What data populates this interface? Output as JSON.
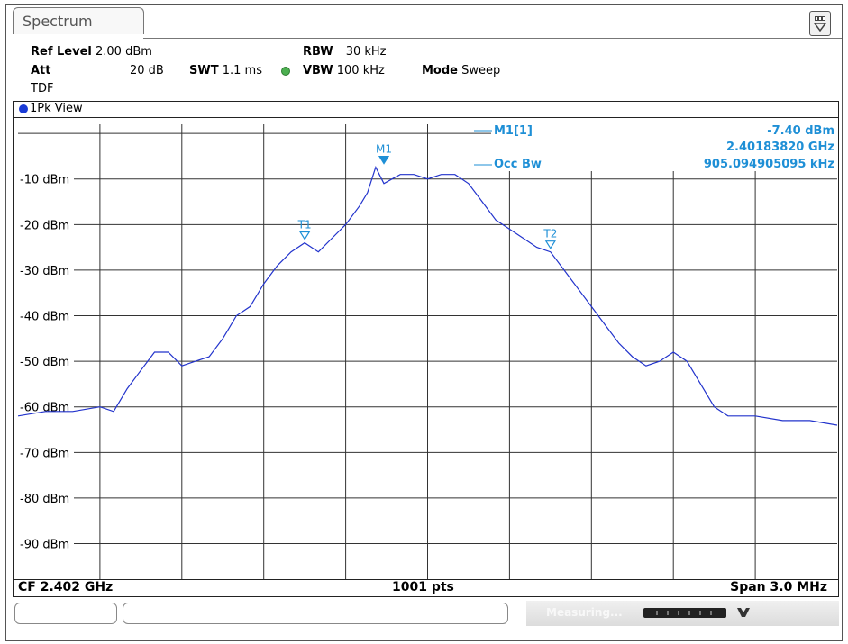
{
  "window": {
    "tab_label": "Spectrum",
    "menu_icon": "display-menu-icon"
  },
  "settings": {
    "ref_level_label": "Ref Level",
    "ref_level_value": "2.00 dBm",
    "att_label": "Att",
    "att_value": "20 dB",
    "swt_label": "SWT",
    "swt_value": "1.1 ms",
    "rbw_label": "RBW",
    "rbw_value": "30 kHz",
    "vbw_label": "VBW",
    "vbw_value": "100 kHz",
    "mode_label": "Mode",
    "mode_value": "Sweep",
    "tdf": "TDF"
  },
  "view": {
    "label": "1Pk View"
  },
  "marker_info": {
    "m1_label": "M1[1]",
    "m1_level": "-7.40 dBm",
    "m1_freq": "2.40183820 GHz",
    "occ_bw_label": "Occ Bw",
    "occ_bw_value": "905.094905095 kHz"
  },
  "footer": {
    "cf": "CF 2.402 GHz",
    "pts": "1001 pts",
    "span": "Span 3.0 MHz"
  },
  "status": {
    "measuring": "Measuring..."
  },
  "colors": {
    "trace": "#2233cc",
    "marker": "#1e8fd6",
    "grid": "#333333"
  },
  "chart_data": {
    "type": "line",
    "y_tick_labels": [
      "-10 dBm",
      "-20 dBm",
      "-30 dBm",
      "-40 dBm",
      "-50 dBm",
      "-60 dBm",
      "-70 dBm",
      "-80 dBm",
      "-90 dBm"
    ],
    "ylim": [
      -98,
      2
    ],
    "xlim": [
      2.4005,
      2.4035
    ],
    "grid": true,
    "x": [
      2.4005,
      2.4006,
      2.4007,
      2.4008,
      2.40085,
      2.4009,
      2.40095,
      2.401,
      2.40105,
      2.4011,
      2.40115,
      2.4012,
      2.40125,
      2.4013,
      2.40135,
      2.4014,
      2.40145,
      2.4015,
      2.40155,
      2.4016,
      2.40165,
      2.4017,
      2.40175,
      2.40178,
      2.40181,
      2.40184,
      2.40187,
      2.4019,
      2.40195,
      2.402,
      2.40205,
      2.4021,
      2.40215,
      2.4022,
      2.40225,
      2.4023,
      2.40235,
      2.4024,
      2.40245,
      2.4025,
      2.40255,
      2.4026,
      2.40265,
      2.4027,
      2.40275,
      2.4028,
      2.40285,
      2.4029,
      2.40295,
      2.403,
      2.40305,
      2.4031,
      2.40315,
      2.4032,
      2.4033,
      2.4034,
      2.4035
    ],
    "y": [
      -62,
      -61,
      -61,
      -60,
      -61,
      -56,
      -52,
      -48,
      -48,
      -51,
      -50,
      -49,
      -45,
      -40,
      -38,
      -33,
      -29,
      -26,
      -24,
      -26,
      -23,
      -20,
      -16,
      -13,
      -7.4,
      -11,
      -10,
      -9,
      -9,
      -10,
      -9,
      -9,
      -11,
      -15,
      -19,
      -21,
      -23,
      -25,
      -26,
      -30,
      -34,
      -38,
      -42,
      -46,
      -49,
      -51,
      -50,
      -48,
      -50,
      -55,
      -60,
      -62,
      -62,
      -62,
      -63,
      -63,
      -64
    ],
    "markers": [
      {
        "name": "M1",
        "x": 2.40184,
        "y": -7.4,
        "filled": true
      },
      {
        "name": "T1",
        "x": 2.40155,
        "y": -24,
        "filled": false
      },
      {
        "name": "T2",
        "x": 2.40245,
        "y": -26,
        "filled": false
      }
    ]
  }
}
